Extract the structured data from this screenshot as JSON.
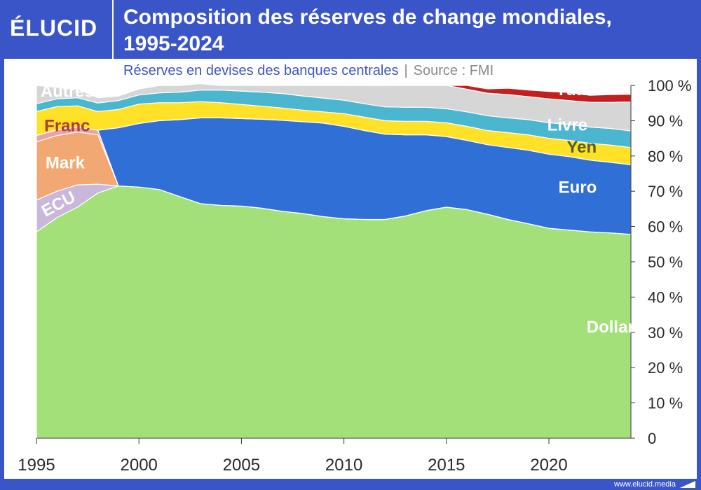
{
  "header": {
    "logo": "ÉLUCID",
    "title_line1": "Composition des réserves de change mondiales,",
    "title_line2": "1995-2024"
  },
  "subtitle": {
    "main": "Réserves en devises des banques centrales",
    "separator": "|",
    "source": "Source : FMI"
  },
  "footer": {
    "url": "www.elucid.media"
  },
  "chart_data": {
    "type": "area",
    "stacked": true,
    "title": "Composition des réserves de change mondiales, 1995-2024",
    "subtitle": "Réserves en devises des banques centrales | Source : FMI",
    "xlabel": "",
    "ylabel": "",
    "xlim": [
      1995,
      2024
    ],
    "ylim": [
      0,
      100
    ],
    "x_ticks": [
      "1995",
      "2000",
      "2005",
      "2010",
      "2015",
      "2020"
    ],
    "y_ticks": [
      "0",
      "10 %",
      "20 %",
      "30 %",
      "40 %",
      "50 %",
      "60 %",
      "70 %",
      "80 %",
      "90 %",
      "100 %"
    ],
    "x": [
      1995,
      1996,
      1997,
      1998,
      1999,
      2000,
      2001,
      2002,
      2003,
      2004,
      2005,
      2006,
      2007,
      2008,
      2009,
      2010,
      2011,
      2012,
      2013,
      2014,
      2015,
      2016,
      2017,
      2018,
      2019,
      2020,
      2021,
      2022,
      2023,
      2024
    ],
    "series": [
      {
        "name": "Dollar",
        "label": "Dollar",
        "color": "#a4e07a",
        "label_color": "#ffffff",
        "values": [
          58.5,
          62.5,
          65.5,
          69.5,
          71.5,
          71.2,
          70.5,
          68.5,
          66.5,
          66,
          65.8,
          65.2,
          64.3,
          63.7,
          62.8,
          62.2,
          62,
          62,
          63,
          64.5,
          65.5,
          64.8,
          63.5,
          62,
          60.8,
          59.5,
          59,
          58.5,
          58.2,
          57.8
        ]
      },
      {
        "name": "ECU",
        "label": "ECU",
        "color": "#c9b7dc",
        "label_color": "#ffffff",
        "values": [
          9,
          7.5,
          6.3,
          2.5,
          0,
          0,
          0,
          0,
          0,
          0,
          0,
          0,
          0,
          0,
          0,
          0,
          0,
          0,
          0,
          0,
          0,
          0,
          0,
          0,
          0,
          0,
          0,
          0,
          0,
          0
        ]
      },
      {
        "name": "Mark",
        "label": "Mark",
        "color": "#f2a872",
        "label_color": "#ffffff",
        "values": [
          16.5,
          15.8,
          15,
          14,
          0,
          0,
          0,
          0,
          0,
          0,
          0,
          0,
          0,
          0,
          0,
          0,
          0,
          0,
          0,
          0,
          0,
          0,
          0,
          0,
          0,
          0,
          0,
          0,
          0,
          0
        ]
      },
      {
        "name": "Franc",
        "label": "Franc",
        "color": "#e8a4a4",
        "label_color": "#b33a3a",
        "values": [
          1.8,
          1.6,
          1.4,
          1.3,
          0,
          0,
          0,
          0,
          0,
          0,
          0,
          0,
          0,
          0,
          0,
          0,
          0,
          0,
          0,
          0,
          0,
          0,
          0,
          0,
          0,
          0,
          0,
          0,
          0,
          0
        ]
      },
      {
        "name": "Euro",
        "label": "Euro",
        "color": "#2f6fd6",
        "label_color": "#ffffff",
        "values": [
          0,
          0,
          0,
          0,
          16.5,
          18,
          19.5,
          21.8,
          24.3,
          24.8,
          24.8,
          25.2,
          25.8,
          26,
          26.5,
          26.2,
          25.2,
          24.2,
          23,
          21.5,
          20,
          19.6,
          19.7,
          20.4,
          20.8,
          21,
          20.8,
          20.3,
          20,
          19.7
        ]
      },
      {
        "name": "Yen",
        "label": "Yen",
        "color": "#ffe227",
        "label_color": "#5a5a2a",
        "values": [
          6.8,
          6.6,
          6,
          5.3,
          5.2,
          5.5,
          5.1,
          4.8,
          4.6,
          4.3,
          4,
          3.7,
          3.5,
          3.3,
          3.2,
          3.6,
          3.8,
          3.8,
          3.8,
          3.8,
          3.9,
          4,
          4,
          4.2,
          4.4,
          4.5,
          4.6,
          4.8,
          4.9,
          4.9
        ]
      },
      {
        "name": "Livre",
        "label": "Livre",
        "color": "#4bb6d0",
        "label_color": "#ffffff",
        "values": [
          2.2,
          2.2,
          2.3,
          2.4,
          2.5,
          2.6,
          2.8,
          3,
          3.3,
          3.6,
          3.8,
          4,
          4.1,
          4,
          3.9,
          3.8,
          3.8,
          3.9,
          4,
          4,
          4,
          4.1,
          4.2,
          4.2,
          4.3,
          4.4,
          4.5,
          4.6,
          4.7,
          4.7
        ]
      },
      {
        "name": "Autres",
        "label": "Autres",
        "color": "#d6d6d6",
        "label_color": "#ffffff",
        "values": [
          5.2,
          3.3,
          2.5,
          1.5,
          1.3,
          1.7,
          2.1,
          1.9,
          1.8,
          1.3,
          1.6,
          1.9,
          2.3,
          3,
          3.6,
          4.2,
          5.2,
          6.1,
          6.2,
          6.2,
          6.6,
          6.4,
          6.4,
          6.6,
          6.5,
          6.8,
          6.8,
          7,
          7.4,
          8.2
        ]
      },
      {
        "name": "Yuan",
        "label": "Yuan",
        "color": "#c41f1f",
        "label_color": "#ffffff",
        "values": [
          0,
          0,
          0,
          0,
          0,
          0,
          0,
          0,
          0,
          0,
          0,
          0,
          0,
          0,
          0,
          0,
          0,
          0,
          0,
          0,
          0,
          1.1,
          1.2,
          1.8,
          1.9,
          2.1,
          2.3,
          2.0,
          2.2,
          2.2
        ]
      }
    ]
  }
}
